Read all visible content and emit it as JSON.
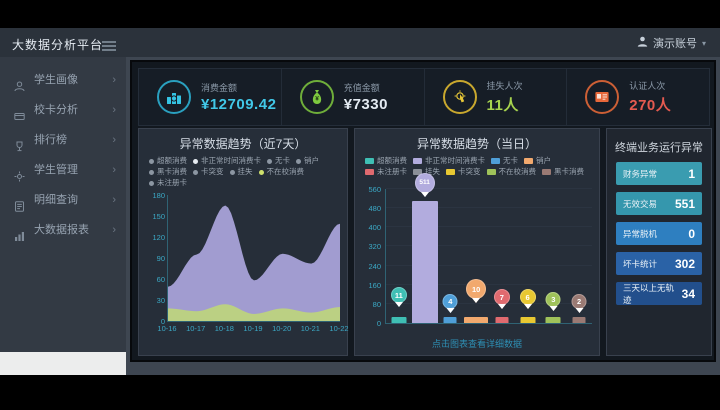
{
  "header": {
    "title": "大数据分析平台",
    "user_name": "演示账号",
    "user_caret": "▾"
  },
  "sidebar": {
    "chevron": "›",
    "items": [
      {
        "label": "学生画像",
        "icon": "student-icon"
      },
      {
        "label": "校卡分析",
        "icon": "card-icon"
      },
      {
        "label": "排行榜",
        "icon": "trophy-icon"
      },
      {
        "label": "学生管理",
        "icon": "manage-icon"
      },
      {
        "label": "明细查询",
        "icon": "query-icon"
      },
      {
        "label": "大数据报表",
        "icon": "report-icon"
      }
    ]
  },
  "kpis": [
    {
      "label": "消费金额",
      "value": "¥12709.42",
      "value_color": "#41c8e8",
      "ring_color": "#2aa0bf",
      "icon": "coins-icon"
    },
    {
      "label": "充值金额",
      "value": "¥7330",
      "value_color": "#e4ebf2",
      "ring_color": "#6fae3a",
      "icon": "moneybag-icon"
    },
    {
      "label": "挂失人次",
      "value": "11人",
      "value_color": "#a7d44e",
      "ring_color": "#c9a82e",
      "icon": "touch-icon"
    },
    {
      "label": "认证人次",
      "value": "270人",
      "value_color": "#e55a50",
      "ring_color": "#cc5f35",
      "icon": "idcard-icon"
    }
  ],
  "chart_data": [
    {
      "type": "area",
      "title": "异常数据趋势（近7天）",
      "x": [
        "10-16",
        "10-17",
        "10-18",
        "10-19",
        "10-20",
        "10-21",
        "10-22"
      ],
      "series": [
        {
          "name": "非正常时间消费卡",
          "color": "#a8a2d8",
          "values": [
            49,
            95,
            165,
            58,
            96,
            82,
            139
          ]
        },
        {
          "name": "不在校消费",
          "color": "#bdd37e",
          "values": [
            18,
            14,
            24,
            10,
            18,
            12,
            20
          ]
        }
      ],
      "ylim": [
        0,
        180
      ],
      "yticks": [
        0,
        30,
        60,
        90,
        120,
        150,
        180
      ],
      "grid": false,
      "legend_position": "top",
      "legend": [
        {
          "label": "超额消费",
          "dot": "#8c96a2"
        },
        {
          "label": "非正常时间消费卡",
          "dot": "#e6ebf1"
        },
        {
          "label": "无卡",
          "dot": "#8c96a2"
        },
        {
          "label": "销户",
          "dot": "#8c96a2"
        },
        {
          "label": "黑卡消费",
          "dot": "#8c96a2"
        },
        {
          "label": "卡突变",
          "dot": "#8c96a2"
        },
        {
          "label": "挂失",
          "dot": "#8c96a2"
        },
        {
          "label": "不在校消费",
          "dot": "#cfe16d"
        },
        {
          "label": "未注册卡",
          "dot": "#8c96a2"
        }
      ]
    },
    {
      "type": "bar",
      "title": "异常数据趋势（当日）",
      "categories": [
        "超额消费",
        "非正常时间消费卡",
        "无卡",
        "销户",
        "未注册卡",
        "卡突变",
        "不在校消费",
        "黑卡消费"
      ],
      "values": [
        11,
        511,
        4,
        10,
        7,
        6,
        3,
        2
      ],
      "colors": [
        "#3fbfb4",
        "#b2acde",
        "#4f9fd8",
        "#f2a96e",
        "#e06a6f",
        "#e8c832",
        "#9fc25a",
        "#9a7a74"
      ],
      "ylim": [
        0,
        560
      ],
      "yticks": [
        0,
        80,
        160,
        240,
        320,
        400,
        480,
        560
      ],
      "grid": true,
      "legend_position": "top",
      "legend": [
        {
          "label": "超额消费",
          "color": "#3fbfb4"
        },
        {
          "label": "非正常时间消费卡",
          "color": "#b2acde"
        },
        {
          "label": "无卡",
          "color": "#4f9fd8"
        },
        {
          "label": "销户",
          "color": "#f2a96e"
        },
        {
          "label": "未注册卡",
          "color": "#e06a6f"
        },
        {
          "label": "挂失",
          "color": "#8a8f98"
        },
        {
          "label": "卡突变",
          "color": "#e8c832"
        },
        {
          "label": "不在校消费",
          "color": "#9fc25a"
        },
        {
          "label": "黑卡消费",
          "color": "#9a7a74"
        }
      ],
      "footer_link": "点击图表查看详细数据"
    }
  ],
  "right_panel": {
    "title": "终端业务运行异常",
    "rows": [
      {
        "label": "财务异常",
        "value": "1",
        "bg": "#3a9cb0"
      },
      {
        "label": "无效交易",
        "value": "551",
        "bg": "#3597ad"
      },
      {
        "label": "异常脱机",
        "value": "0",
        "bg": "#2e7fc0"
      },
      {
        "label": "坏卡统计",
        "value": "302",
        "bg": "#2a62a6"
      },
      {
        "label": "三天以上无轨迹",
        "value": "34",
        "bg": "#224f8c"
      }
    ]
  }
}
